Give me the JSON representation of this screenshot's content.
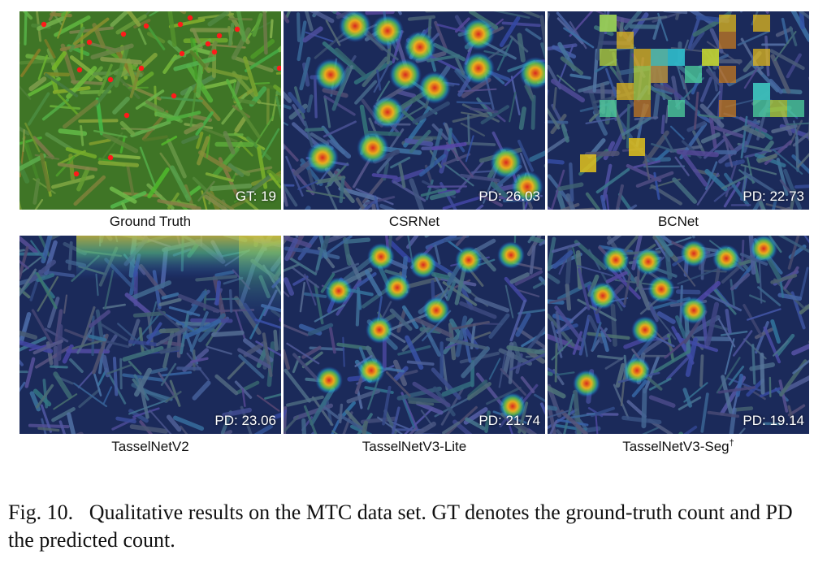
{
  "panels": [
    {
      "label": "Ground Truth",
      "count": "GT: 19",
      "kind": "gt",
      "sup": ""
    },
    {
      "label": "CSRNet",
      "count": "PD: 26.03",
      "kind": "blobs",
      "sup": ""
    },
    {
      "label": "BCNet",
      "count": "PD: 22.73",
      "kind": "blocks",
      "sup": ""
    },
    {
      "label": "TasselNetV2",
      "count": "PD: 23.06",
      "kind": "band",
      "sup": ""
    },
    {
      "label": "TasselNetV3-Lite",
      "count": "PD: 21.74",
      "kind": "pixblobs",
      "sup": ""
    },
    {
      "label": "TasselNetV3-Seg",
      "count": "PD: 19.14",
      "kind": "pixblobs2",
      "sup": "†"
    }
  ],
  "caption": {
    "fig": "Fig. 10.",
    "text": "Qualitative results on the MTC data set. GT denotes the ground-truth count and PD the predicted count."
  },
  "colors": {
    "field": "#4f8a2e",
    "heat_low": "#1d3ea8",
    "heat_hot": "#e0a020"
  }
}
